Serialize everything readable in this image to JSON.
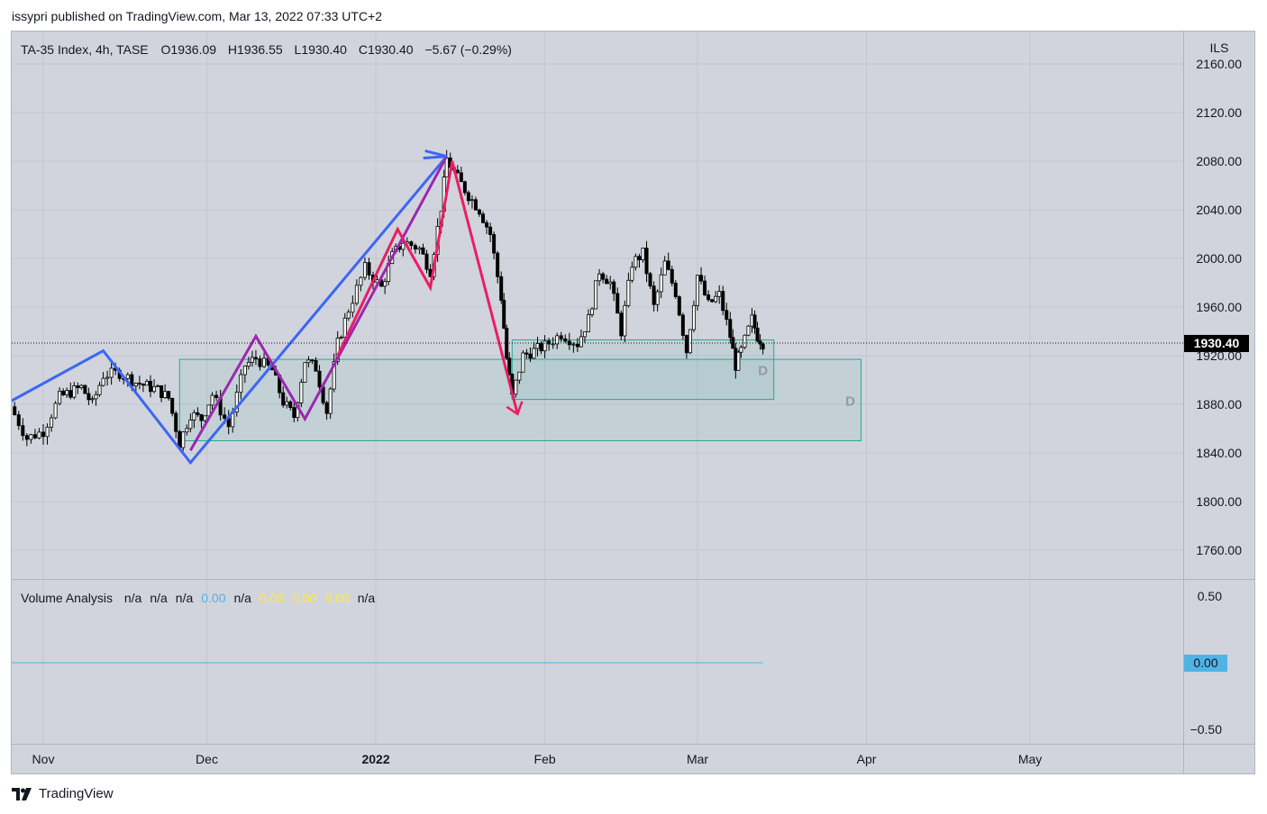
{
  "publish_line": "issypri published on TradingView.com, Mar 13, 2022 07:33 UTC+2",
  "brand": "TradingView",
  "colors": {
    "pane_bg": "#d1d4dc",
    "candle": "#000000",
    "line_blue": "#3c66f5",
    "line_purple": "#9c27b0",
    "line_pink": "#e91e63",
    "zone_border": "#22ab94",
    "zone_fill": "rgba(34,171,148,0.08)",
    "volume_line": "#4fb3e6",
    "price_tag_bg": "#000000",
    "volume_tag_bg": "#4fb3e6"
  },
  "header": {
    "symbol": "TA-35 Index, 4h, TASE",
    "open": "O1936.09",
    "high": "H1936.55",
    "low": "L1930.40",
    "close": "C1930.40",
    "change": "−5.67 (−0.29%)"
  },
  "currency": "ILS",
  "current_price": "1930.40",
  "indicator": {
    "name": "Volume Analysis",
    "values": [
      {
        "text": "n/a",
        "color": "#131722"
      },
      {
        "text": "n/a",
        "color": "#131722"
      },
      {
        "text": "n/a",
        "color": "#131722"
      },
      {
        "text": "0.00",
        "color": "#4fb3e6"
      },
      {
        "text": "n/a",
        "color": "#131722"
      },
      {
        "text": "0.00",
        "color": "#ffeb3b"
      },
      {
        "text": "0.00",
        "color": "#ffeb3b"
      },
      {
        "text": "0.00",
        "color": "#ffeb3b"
      },
      {
        "text": "n/a",
        "color": "#131722"
      }
    ],
    "axis_labels": [
      "0.50",
      "−0.50"
    ],
    "current_value": "0.00"
  },
  "chart_data": {
    "type": "candlestick",
    "title": "TA-35 Index, 4h, TASE",
    "ylabel": "ILS",
    "ylim": [
      1720,
      2180
    ],
    "y_ticks": [
      "2160.00",
      "2120.00",
      "2080.00",
      "2040.00",
      "2000.00",
      "1960.00",
      "1920.00",
      "1880.00",
      "1840.00",
      "1800.00",
      "1760.00"
    ],
    "x_ticks": [
      {
        "label": "Nov",
        "date": "2021-11-01",
        "bold": false
      },
      {
        "label": "Dec",
        "date": "2021-12-01",
        "bold": false
      },
      {
        "label": "2022",
        "date": "2022-01-01",
        "bold": true
      },
      {
        "label": "Feb",
        "date": "2022-02-01",
        "bold": false
      },
      {
        "label": "Mar",
        "date": "2022-03-01",
        "bold": false
      },
      {
        "label": "Apr",
        "date": "2022-04-01",
        "bold": false
      },
      {
        "label": "May",
        "date": "2022-05-01",
        "bold": false
      }
    ],
    "price_path": [
      [
        "2021-10-26",
        1878
      ],
      [
        "2021-10-29",
        1852
      ],
      [
        "2021-11-01",
        1858
      ],
      [
        "2021-11-04",
        1886
      ],
      [
        "2021-11-08",
        1894
      ],
      [
        "2021-11-10",
        1880
      ],
      [
        "2021-11-12",
        1904
      ],
      [
        "2021-11-15",
        1906
      ],
      [
        "2021-11-18",
        1898
      ],
      [
        "2021-11-22",
        1892
      ],
      [
        "2021-11-24",
        1885
      ],
      [
        "2021-11-26",
        1848
      ],
      [
        "2021-11-28",
        1872
      ],
      [
        "2021-11-30",
        1868
      ],
      [
        "2021-12-02",
        1888
      ],
      [
        "2021-12-05",
        1862
      ],
      [
        "2021-12-08",
        1912
      ],
      [
        "2021-12-10",
        1918
      ],
      [
        "2021-12-13",
        1908
      ],
      [
        "2021-12-15",
        1882
      ],
      [
        "2021-12-17",
        1870
      ],
      [
        "2021-12-19",
        1916
      ],
      [
        "2021-12-21",
        1910
      ],
      [
        "2021-12-23",
        1874
      ],
      [
        "2021-12-25",
        1930
      ],
      [
        "2021-12-27",
        1958
      ],
      [
        "2021-12-30",
        1992
      ],
      [
        "2022-01-02",
        1976
      ],
      [
        "2022-01-04",
        2002
      ],
      [
        "2022-01-06",
        2014
      ],
      [
        "2022-01-09",
        2008
      ],
      [
        "2022-01-11",
        1990
      ],
      [
        "2022-01-13",
        2042
      ],
      [
        "2022-01-14",
        2082
      ],
      [
        "2022-01-16",
        2066
      ],
      [
        "2022-01-18",
        2052
      ],
      [
        "2022-01-20",
        2040
      ],
      [
        "2022-01-22",
        2020
      ],
      [
        "2022-01-24",
        1968
      ],
      [
        "2022-01-25",
        1918
      ],
      [
        "2022-01-26",
        1886
      ],
      [
        "2022-01-28",
        1920
      ],
      [
        "2022-02-01",
        1928
      ],
      [
        "2022-02-04",
        1938
      ],
      [
        "2022-02-07",
        1930
      ],
      [
        "2022-02-09",
        1950
      ],
      [
        "2022-02-11",
        1990
      ],
      [
        "2022-02-13",
        1980
      ],
      [
        "2022-02-15",
        1940
      ],
      [
        "2022-02-17",
        1996
      ],
      [
        "2022-02-19",
        2004
      ],
      [
        "2022-02-21",
        1960
      ],
      [
        "2022-02-23",
        1996
      ],
      [
        "2022-02-25",
        1972
      ],
      [
        "2022-02-27",
        1924
      ],
      [
        "2022-03-01",
        1986
      ],
      [
        "2022-03-03",
        1962
      ],
      [
        "2022-03-05",
        1970
      ],
      [
        "2022-03-07",
        1936
      ],
      [
        "2022-03-08",
        1912
      ],
      [
        "2022-03-09",
        1924
      ],
      [
        "2022-03-11",
        1950
      ],
      [
        "2022-03-12",
        1936
      ],
      [
        "2022-03-13",
        1930.4
      ]
    ],
    "drawings": [
      {
        "name": "blue-zigzag",
        "color": "#3c66f5",
        "points": [
          [
            "2021-10-25",
            1880
          ],
          [
            "2021-11-12",
            1924
          ],
          [
            "2021-11-28",
            1832
          ],
          [
            "2022-01-14",
            2084
          ]
        ]
      },
      {
        "name": "purple-zigzag",
        "color": "#9c27b0",
        "points": [
          [
            "2021-11-28",
            1842
          ],
          [
            "2021-12-10",
            1936
          ],
          [
            "2021-12-19",
            1868
          ],
          [
            "2022-01-14",
            2084
          ]
        ]
      },
      {
        "name": "pink-zigzag",
        "color": "#e91e63",
        "points": [
          [
            "2021-12-25",
            1920
          ],
          [
            "2022-01-05",
            2024
          ],
          [
            "2022-01-11",
            1976
          ],
          [
            "2022-01-15",
            2080
          ],
          [
            "2022-01-27",
            1872
          ]
        ]
      }
    ],
    "zones": [
      {
        "label": "D",
        "from": "2021-11-26",
        "to": "2022-03-31",
        "top": 1917,
        "bottom": 1850
      },
      {
        "label": "D",
        "from": "2022-01-26",
        "to": "2022-03-15",
        "top": 1933,
        "bottom": 1884
      }
    ]
  }
}
